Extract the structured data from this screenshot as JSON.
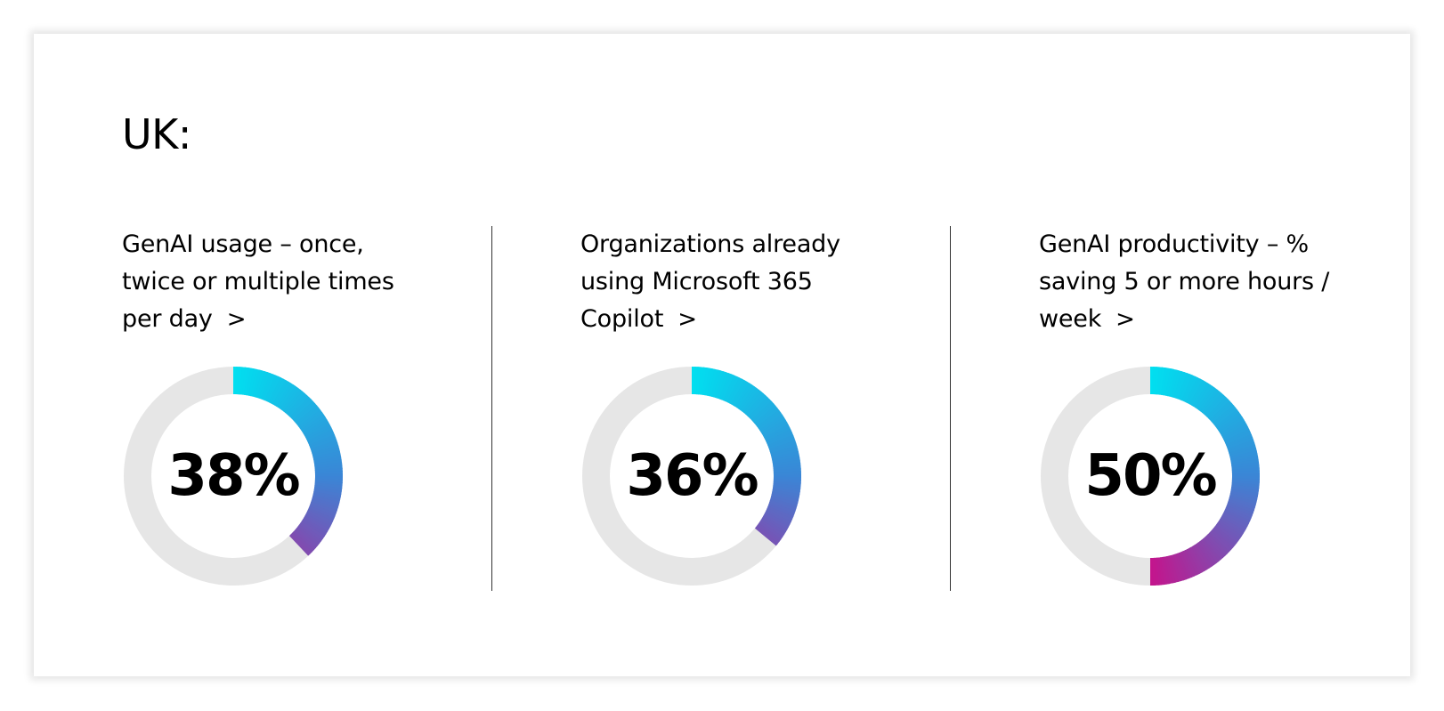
{
  "region": "UK:",
  "colors": {
    "track": "#e6e6e6",
    "gradient_start": "#00e0f0",
    "gradient_mid": "#3a86d6",
    "gradient_end": "#c4148c",
    "text": "#000000"
  },
  "metrics": [
    {
      "label": "GenAI usage – once, twice or multiple times per day",
      "chevron": ">",
      "value_label": "38%"
    },
    {
      "label": "Organizations already using Microsoft 365 Copilot",
      "chevron": ">",
      "value_label": "36%"
    },
    {
      "label": "GenAI productivity –  % saving 5 or more hours / week",
      "chevron": ">",
      "value_label": "50%"
    }
  ],
  "chart_data": [
    {
      "type": "pie",
      "values": [
        38,
        62
      ],
      "unit": "%"
    },
    {
      "type": "pie",
      "values": [
        36,
        64
      ],
      "unit": "%"
    },
    {
      "type": "pie",
      "values": [
        50,
        50
      ],
      "unit": "%"
    }
  ]
}
